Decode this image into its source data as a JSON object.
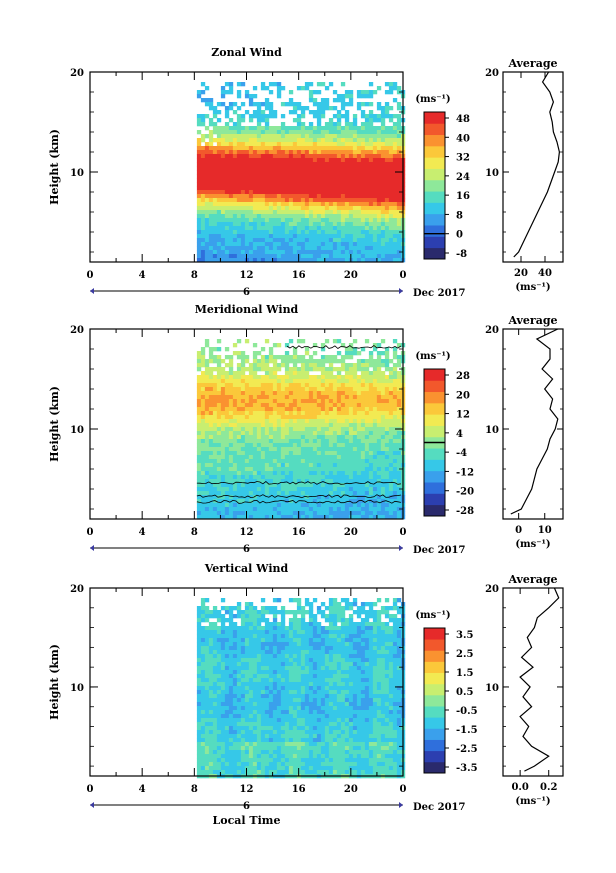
{
  "colors": {
    "palette": [
      "#2a2a6c",
      "#2c3fb0",
      "#2f6fdc",
      "#3aa0ec",
      "#36c8e8",
      "#55dcc0",
      "#8ee89a",
      "#c8ee70",
      "#f2ea52",
      "#fbc83a",
      "#fa9230",
      "#f2582c",
      "#e62a2a"
    ]
  },
  "chart_data": [
    {
      "type": "heatmap",
      "title": "Zonal Wind",
      "ylabel": "Height (km)",
      "xlabel": "",
      "x_ticks": [
        "0",
        "4",
        "8",
        "12",
        "16",
        "20",
        "0"
      ],
      "y_ticks": [
        "20",
        "10"
      ],
      "xlim": [
        0,
        24
      ],
      "ylim": [
        1,
        20
      ],
      "data_start_hour": 8.2,
      "date_marker": "6",
      "date_label": "Dec 2017",
      "colorbar": {
        "unit": "(ms⁻¹)",
        "ticks": [
          "48",
          "40",
          "32",
          "24",
          "16",
          "8",
          "0",
          "-8"
        ],
        "zero_line": true
      },
      "profile": {
        "title": "Average",
        "x_ticks": [
          "20",
          "40"
        ],
        "xlabel": "(ms⁻¹)",
        "y_ticks": [
          "20",
          "10"
        ],
        "xlim": [
          5,
          55
        ],
        "heights": [
          1.5,
          2,
          3,
          4,
          5,
          6,
          7,
          8,
          9,
          10,
          11,
          12,
          13,
          14,
          15,
          16,
          17,
          18,
          19,
          20
        ],
        "values": [
          14,
          18,
          22,
          26,
          30,
          34,
          38,
          42,
          45,
          48,
          51,
          52,
          50,
          47,
          46,
          44,
          47,
          44,
          38,
          43
        ]
      }
    },
    {
      "type": "heatmap",
      "title": "Meridional Wind",
      "ylabel": "Height (km)",
      "xlabel": "",
      "x_ticks": [
        "0",
        "4",
        "8",
        "12",
        "16",
        "20",
        "0"
      ],
      "y_ticks": [
        "20",
        "10"
      ],
      "xlim": [
        0,
        24
      ],
      "ylim": [
        1,
        20
      ],
      "data_start_hour": 8.2,
      "date_marker": "6",
      "date_label": "Dec 2017",
      "colorbar": {
        "unit": "(ms⁻¹)",
        "ticks": [
          "28",
          "20",
          "12",
          "4",
          "-4",
          "-12",
          "-20",
          "-28"
        ],
        "zero_line": true
      },
      "profile": {
        "title": "Average",
        "x_ticks": [
          "0",
          "10"
        ],
        "xlabel": "(ms⁻¹)",
        "y_ticks": [
          "20",
          "10"
        ],
        "xlim": [
          -6,
          17
        ],
        "heights": [
          1.5,
          2,
          3,
          4,
          5,
          6,
          7,
          8,
          9,
          10,
          11,
          12,
          13,
          14,
          15,
          16,
          17,
          18,
          19,
          20
        ],
        "values": [
          -3,
          1,
          3,
          5,
          6,
          7,
          9,
          11,
          12,
          14,
          15,
          12,
          13,
          10,
          13,
          9,
          12,
          12,
          7,
          15
        ]
      }
    },
    {
      "type": "heatmap",
      "title": "Vertical Wind",
      "ylabel": "Height (km)",
      "xlabel": "Local Time",
      "x_ticks": [
        "0",
        "4",
        "8",
        "12",
        "16",
        "20",
        "0"
      ],
      "y_ticks": [
        "20",
        "10"
      ],
      "xlim": [
        0,
        24
      ],
      "ylim": [
        1,
        20
      ],
      "data_start_hour": 8.2,
      "date_marker": "6",
      "date_label": "Dec 2017",
      "colorbar": {
        "unit": "(ms⁻¹)",
        "ticks": [
          "3.5",
          "2.5",
          "1.5",
          "0.5",
          "-0.5",
          "-1.5",
          "-2.5",
          "-3.5"
        ],
        "zero_line": false
      },
      "profile": {
        "title": "Average",
        "x_ticks": [
          "0.0",
          "0.2"
        ],
        "xlabel": "(ms⁻¹)",
        "y_ticks": [
          "20",
          "10"
        ],
        "xlim": [
          -0.12,
          0.3
        ],
        "heights": [
          1.5,
          2,
          3,
          4,
          5,
          6,
          7,
          8,
          9,
          10,
          11,
          12,
          13,
          14,
          15,
          16,
          17,
          18,
          19,
          20
        ],
        "values": [
          0.03,
          0.1,
          0.2,
          0.08,
          0.02,
          0.06,
          0.0,
          0.08,
          0.02,
          0.07,
          0.0,
          0.09,
          0.01,
          0.08,
          0.05,
          0.1,
          0.12,
          0.2,
          0.27,
          0.24
        ]
      }
    }
  ]
}
